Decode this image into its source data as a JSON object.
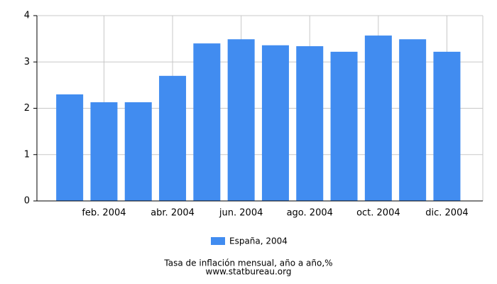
{
  "chart_data": {
    "type": "bar",
    "title": "Tasa de inflación mensual, año a año,%",
    "subtitle": "www.statbureau.org",
    "categories": [
      null,
      "feb. 2004",
      null,
      "abr. 2004",
      null,
      "jun. 2004",
      null,
      "ago. 2004",
      null,
      "oct. 2004",
      null,
      "dic. 2004"
    ],
    "series": [
      {
        "name": "España, 2004",
        "color": "#418cf0",
        "values": [
          2.3,
          2.13,
          2.13,
          2.7,
          3.4,
          3.49,
          3.36,
          3.34,
          3.22,
          3.57,
          3.49,
          3.22
        ]
      }
    ],
    "ylim": [
      0,
      4
    ],
    "yticks": [
      0,
      1,
      2,
      3,
      4
    ],
    "grid": true
  }
}
